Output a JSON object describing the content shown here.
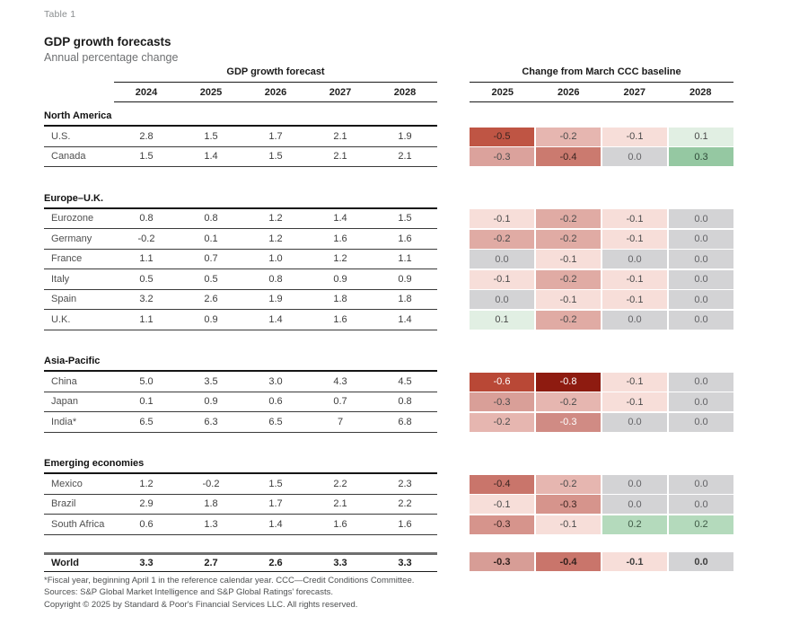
{
  "header": {
    "table_label": "Table 1",
    "title": "GDP growth forecasts",
    "subtitle": "Annual percentage change"
  },
  "chart_data": {
    "type": "table",
    "left_group": {
      "title": "GDP growth forecast",
      "columns": [
        "2024",
        "2025",
        "2026",
        "2027",
        "2028"
      ]
    },
    "right_group": {
      "title": "Change from March CCC baseline",
      "columns": [
        "2025",
        "2026",
        "2027",
        "2028"
      ]
    },
    "sections": [
      {
        "name": "North America",
        "rows": [
          {
            "label": "U.S.",
            "forecast": [
              "2.8",
              "1.5",
              "1.7",
              "2.1",
              "1.9"
            ],
            "changes": [
              {
                "value": "-0.5",
                "bg": "#bf5544",
                "fg": "#3b2420"
              },
              {
                "value": "-0.2",
                "bg": "#e6b6b0",
                "fg": "#4a4a4a"
              },
              {
                "value": "-0.1",
                "bg": "#f7ded9",
                "fg": "#4a4a4a"
              },
              {
                "value": "0.1",
                "bg": "#e1efe3",
                "fg": "#4a4a4a"
              }
            ]
          },
          {
            "label": "Canada",
            "forecast": [
              "1.5",
              "1.4",
              "1.5",
              "2.1",
              "2.1"
            ],
            "changes": [
              {
                "value": "-0.3",
                "bg": "#dba29c",
                "fg": "#4a4a4a"
              },
              {
                "value": "-0.4",
                "bg": "#cb7a6f",
                "fg": "#3b2420"
              },
              {
                "value": "0.0",
                "bg": "#d3d3d5",
                "fg": "#636366"
              },
              {
                "value": "0.3",
                "bg": "#95c8a2",
                "fg": "#2f4a38"
              }
            ]
          }
        ]
      },
      {
        "name": "Europe–U.K.",
        "rows": [
          {
            "label": "Eurozone",
            "forecast": [
              "0.8",
              "0.8",
              "1.2",
              "1.4",
              "1.5"
            ],
            "changes": [
              {
                "value": "-0.1",
                "bg": "#f7ded9",
                "fg": "#4a4a4a"
              },
              {
                "value": "-0.2",
                "bg": "#e0aba4",
                "fg": "#4a4a4a"
              },
              {
                "value": "-0.1",
                "bg": "#f7ded9",
                "fg": "#4a4a4a"
              },
              {
                "value": "0.0",
                "bg": "#d3d3d5",
                "fg": "#636366"
              }
            ]
          },
          {
            "label": "Germany",
            "forecast": [
              "-0.2",
              "0.1",
              "1.2",
              "1.6",
              "1.6"
            ],
            "changes": [
              {
                "value": "-0.2",
                "bg": "#e0aba4",
                "fg": "#4a4a4a"
              },
              {
                "value": "-0.2",
                "bg": "#e0aba4",
                "fg": "#4a4a4a"
              },
              {
                "value": "-0.1",
                "bg": "#f7ded9",
                "fg": "#4a4a4a"
              },
              {
                "value": "0.0",
                "bg": "#d3d3d5",
                "fg": "#636366"
              }
            ]
          },
          {
            "label": "France",
            "forecast": [
              "1.1",
              "0.7",
              "1.0",
              "1.2",
              "1.1"
            ],
            "changes": [
              {
                "value": "0.0",
                "bg": "#d3d3d5",
                "fg": "#636366"
              },
              {
                "value": "-0.1",
                "bg": "#f7ded9",
                "fg": "#4a4a4a"
              },
              {
                "value": "0.0",
                "bg": "#d3d3d5",
                "fg": "#636366"
              },
              {
                "value": "0.0",
                "bg": "#d3d3d5",
                "fg": "#636366"
              }
            ]
          },
          {
            "label": "Italy",
            "forecast": [
              "0.5",
              "0.5",
              "0.8",
              "0.9",
              "0.9"
            ],
            "changes": [
              {
                "value": "-0.1",
                "bg": "#f7ded9",
                "fg": "#4a4a4a"
              },
              {
                "value": "-0.2",
                "bg": "#e0aba4",
                "fg": "#4a4a4a"
              },
              {
                "value": "-0.1",
                "bg": "#f7ded9",
                "fg": "#4a4a4a"
              },
              {
                "value": "0.0",
                "bg": "#d3d3d5",
                "fg": "#636366"
              }
            ]
          },
          {
            "label": "Spain",
            "forecast": [
              "3.2",
              "2.6",
              "1.9",
              "1.8",
              "1.8"
            ],
            "changes": [
              {
                "value": "0.0",
                "bg": "#d3d3d5",
                "fg": "#636366"
              },
              {
                "value": "-0.1",
                "bg": "#f7ded9",
                "fg": "#4a4a4a"
              },
              {
                "value": "-0.1",
                "bg": "#f7ded9",
                "fg": "#4a4a4a"
              },
              {
                "value": "0.0",
                "bg": "#d3d3d5",
                "fg": "#636366"
              }
            ]
          },
          {
            "label": "U.K.",
            "forecast": [
              "1.1",
              "0.9",
              "1.4",
              "1.6",
              "1.4"
            ],
            "changes": [
              {
                "value": "0.1",
                "bg": "#e1efe3",
                "fg": "#4a4a4a"
              },
              {
                "value": "-0.2",
                "bg": "#e0aba4",
                "fg": "#4a4a4a"
              },
              {
                "value": "0.0",
                "bg": "#d3d3d5",
                "fg": "#636366"
              },
              {
                "value": "0.0",
                "bg": "#d3d3d5",
                "fg": "#636366"
              }
            ]
          }
        ]
      },
      {
        "name": "Asia-Pacific",
        "rows": [
          {
            "label": "China",
            "forecast": [
              "5.0",
              "3.5",
              "3.0",
              "4.3",
              "4.5"
            ],
            "changes": [
              {
                "value": "-0.6",
                "bg": "#b94836",
                "fg": "#ffffff"
              },
              {
                "value": "-0.8",
                "bg": "#8e1b10",
                "fg": "#ffffff"
              },
              {
                "value": "-0.1",
                "bg": "#f7ded9",
                "fg": "#4a4a4a"
              },
              {
                "value": "0.0",
                "bg": "#d3d3d5",
                "fg": "#636366"
              }
            ]
          },
          {
            "label": "Japan",
            "forecast": [
              "0.1",
              "0.9",
              "0.6",
              "0.7",
              "0.8"
            ],
            "changes": [
              {
                "value": "-0.3",
                "bg": "#d99f98",
                "fg": "#4a4a4a"
              },
              {
                "value": "-0.2",
                "bg": "#e6b6b0",
                "fg": "#4a4a4a"
              },
              {
                "value": "-0.1",
                "bg": "#f7ded9",
                "fg": "#4a4a4a"
              },
              {
                "value": "0.0",
                "bg": "#d3d3d5",
                "fg": "#636366"
              }
            ]
          },
          {
            "label": "India*",
            "forecast": [
              "6.5",
              "6.3",
              "6.5",
              "7",
              "6.8"
            ],
            "changes": [
              {
                "value": "-0.2",
                "bg": "#e6b6b0",
                "fg": "#4a4a4a"
              },
              {
                "value": "-0.3",
                "bg": "#d08b84",
                "fg": "#ffffff"
              },
              {
                "value": "0.0",
                "bg": "#d3d3d5",
                "fg": "#636366"
              },
              {
                "value": "0.0",
                "bg": "#d3d3d5",
                "fg": "#636366"
              }
            ]
          }
        ]
      },
      {
        "name": "Emerging economies",
        "rows": [
          {
            "label": "Mexico",
            "forecast": [
              "1.2",
              "-0.2",
              "1.5",
              "2.2",
              "2.3"
            ],
            "changes": [
              {
                "value": "-0.4",
                "bg": "#c9756b",
                "fg": "#3b2420"
              },
              {
                "value": "-0.2",
                "bg": "#e6b6b0",
                "fg": "#4a4a4a"
              },
              {
                "value": "0.0",
                "bg": "#d3d3d5",
                "fg": "#636366"
              },
              {
                "value": "0.0",
                "bg": "#d3d3d5",
                "fg": "#636366"
              }
            ]
          },
          {
            "label": "Brazil",
            "forecast": [
              "2.9",
              "1.8",
              "1.7",
              "2.1",
              "2.2"
            ],
            "changes": [
              {
                "value": "-0.1",
                "bg": "#f7ded9",
                "fg": "#4a4a4a"
              },
              {
                "value": "-0.3",
                "bg": "#d6948c",
                "fg": "#3b2420"
              },
              {
                "value": "0.0",
                "bg": "#d3d3d5",
                "fg": "#636366"
              },
              {
                "value": "0.0",
                "bg": "#d3d3d5",
                "fg": "#636366"
              }
            ]
          },
          {
            "label": "South Africa",
            "forecast": [
              "0.6",
              "1.3",
              "1.4",
              "1.6",
              "1.6"
            ],
            "changes": [
              {
                "value": "-0.3",
                "bg": "#d6948c",
                "fg": "#3b2420"
              },
              {
                "value": "-0.1",
                "bg": "#f7ded9",
                "fg": "#4a4a4a"
              },
              {
                "value": "0.2",
                "bg": "#b4dabc",
                "fg": "#3f5a46"
              },
              {
                "value": "0.2",
                "bg": "#b4dabc",
                "fg": "#3f5a46"
              }
            ]
          }
        ]
      }
    ],
    "world": {
      "label": "World",
      "forecast": [
        "3.3",
        "2.7",
        "2.6",
        "3.3",
        "3.3"
      ],
      "changes": [
        {
          "value": "-0.3",
          "bg": "#d79d96",
          "fg": "#33211e"
        },
        {
          "value": "-0.4",
          "bg": "#c9756b",
          "fg": "#33211e"
        },
        {
          "value": "-0.1",
          "bg": "#f7ded9",
          "fg": "#3f3f3f"
        },
        {
          "value": "0.0",
          "bg": "#d3d3d5",
          "fg": "#3f3f3f"
        }
      ]
    }
  },
  "footnotes": [
    "*Fiscal year, beginning April 1 in the reference calendar year. CCC—Credit Conditions Committee.",
    "Sources: S&P Global Market Intelligence and S&P Global Ratings' forecasts.",
    "Copyright © 2025 by Standard & Poor's Financial Services LLC. All rights reserved."
  ]
}
